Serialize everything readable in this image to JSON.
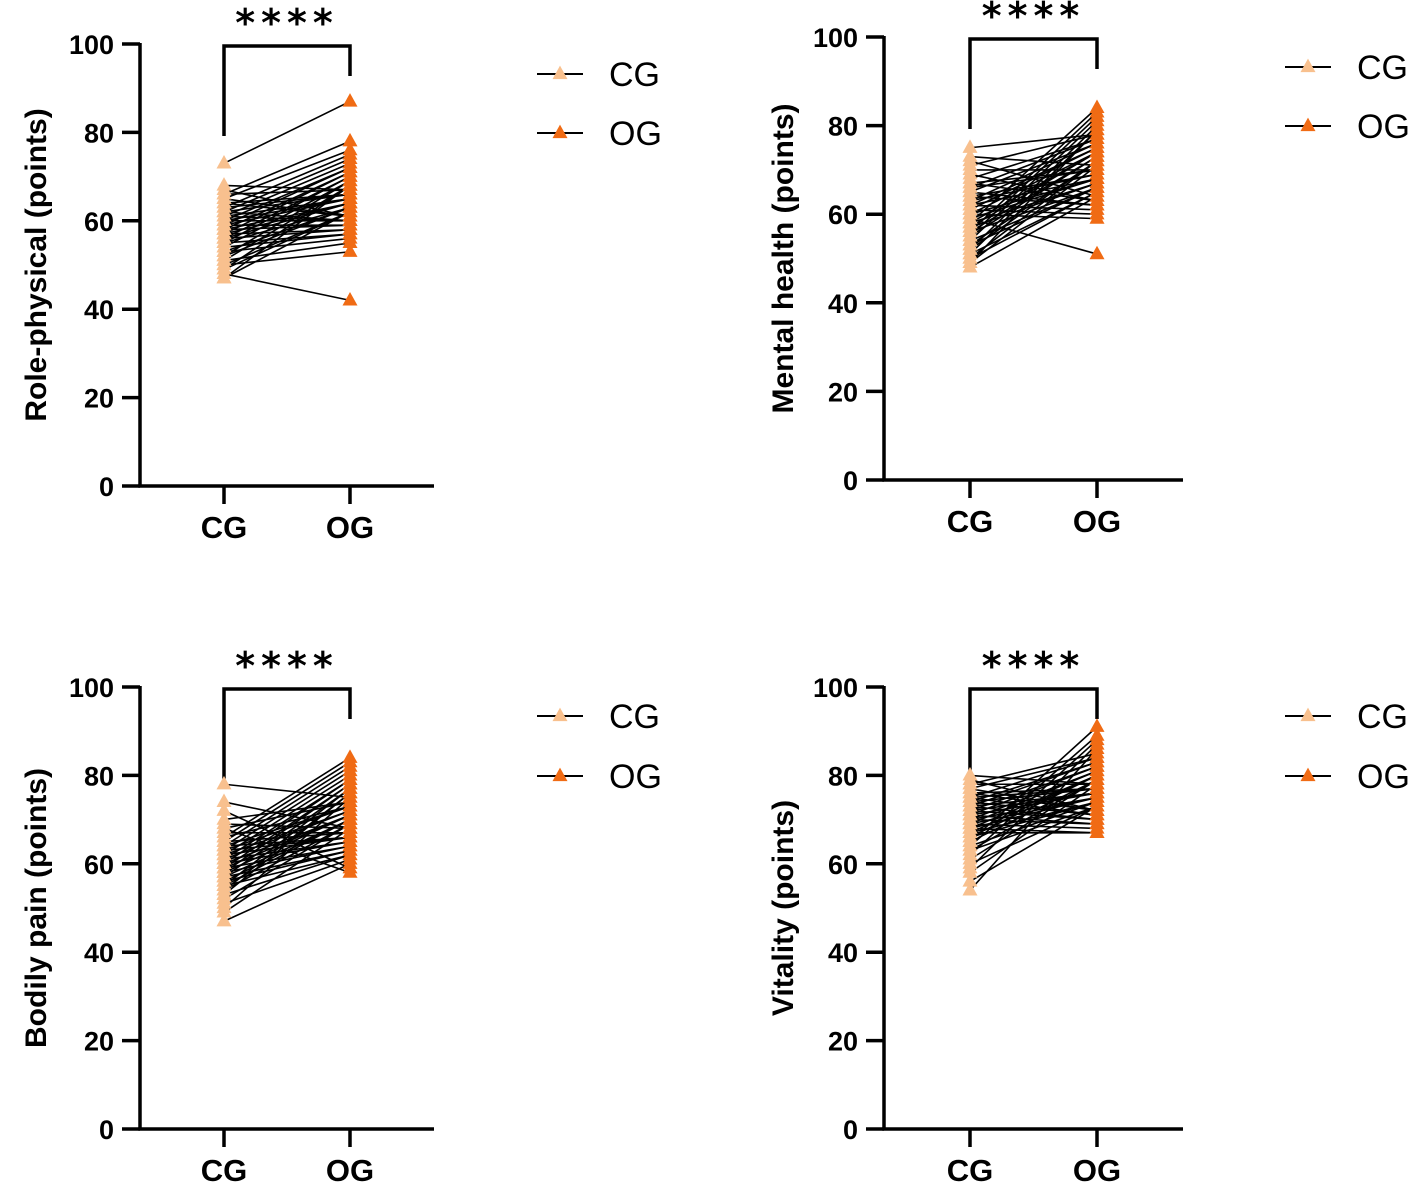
{
  "colors": {
    "cg": "#F8C08E",
    "og": "#F06B14",
    "axis": "#000000",
    "pair_line": "#000000"
  },
  "chart_data": [
    {
      "type": "paired-scatter",
      "ylabel": "Role-physical (points)",
      "categories": [
        "CG",
        "OG"
      ],
      "ylim": [
        0,
        100
      ],
      "yticks": [
        0,
        20,
        40,
        60,
        80,
        100
      ],
      "significance": "****",
      "legend": [
        {
          "label": "CG",
          "color": "#F8C08E"
        },
        {
          "label": "OG",
          "color": "#F06B14"
        }
      ],
      "legend_position": "right",
      "series": [
        {
          "name": "CG",
          "values": [
            73,
            68,
            67,
            66,
            66,
            65,
            65,
            64,
            64,
            63,
            63,
            62,
            62,
            62,
            61,
            61,
            61,
            60,
            60,
            60,
            59,
            59,
            59,
            58,
            58,
            58,
            57,
            57,
            57,
            56,
            56,
            56,
            55,
            55,
            55,
            54,
            54,
            53,
            53,
            52,
            52,
            51,
            51,
            50,
            50,
            49,
            49,
            48,
            47,
            47
          ]
        },
        {
          "name": "OG",
          "values": [
            87,
            78,
            76,
            75,
            74,
            73,
            72,
            72,
            71,
            71,
            70,
            70,
            69,
            69,
            68,
            68,
            68,
            67,
            67,
            66,
            66,
            66,
            65,
            65,
            65,
            64,
            64,
            64,
            63,
            63,
            63,
            62,
            62,
            62,
            61,
            61,
            61,
            60,
            60,
            60,
            59,
            59,
            58,
            58,
            57,
            57,
            56,
            55,
            53,
            42
          ]
        }
      ]
    },
    {
      "type": "paired-scatter",
      "ylabel": "Mental health (points)",
      "categories": [
        "CG",
        "OG"
      ],
      "ylim": [
        0,
        100
      ],
      "yticks": [
        0,
        20,
        40,
        60,
        80,
        100
      ],
      "significance": "****",
      "legend": [
        {
          "label": "CG",
          "color": "#F8C08E"
        },
        {
          "label": "OG",
          "color": "#F06B14"
        }
      ],
      "legend_position": "right",
      "series": [
        {
          "name": "CG",
          "values": [
            75,
            73,
            72,
            71,
            70,
            69,
            68,
            67,
            67,
            66,
            66,
            65,
            65,
            64,
            64,
            63,
            63,
            62,
            62,
            62,
            61,
            61,
            60,
            60,
            60,
            59,
            59,
            58,
            58,
            58,
            57,
            57,
            56,
            56,
            56,
            55,
            55,
            54,
            54,
            53,
            53,
            52,
            52,
            51,
            51,
            50,
            50,
            49,
            49,
            48
          ]
        },
        {
          "name": "OG",
          "values": [
            84,
            83,
            82,
            81,
            80,
            79,
            79,
            78,
            78,
            77,
            77,
            76,
            76,
            75,
            75,
            74,
            74,
            74,
            73,
            73,
            72,
            72,
            72,
            71,
            71,
            70,
            70,
            70,
            69,
            69,
            68,
            68,
            68,
            67,
            67,
            66,
            66,
            66,
            65,
            65,
            64,
            64,
            63,
            63,
            62,
            62,
            61,
            60,
            59,
            51
          ]
        }
      ]
    },
    {
      "type": "paired-scatter",
      "ylabel": "Bodily pain (points)",
      "categories": [
        "CG",
        "OG"
      ],
      "ylim": [
        0,
        100
      ],
      "yticks": [
        0,
        20,
        40,
        60,
        80,
        100
      ],
      "significance": "****",
      "legend": [
        {
          "label": "CG",
          "color": "#F8C08E"
        },
        {
          "label": "OG",
          "color": "#F06B14"
        }
      ],
      "legend_position": "right",
      "series": [
        {
          "name": "CG",
          "values": [
            78,
            74,
            72,
            70,
            69,
            68,
            68,
            67,
            66,
            66,
            65,
            65,
            64,
            64,
            64,
            63,
            63,
            63,
            62,
            62,
            62,
            61,
            61,
            61,
            60,
            60,
            60,
            59,
            59,
            59,
            58,
            58,
            58,
            57,
            57,
            57,
            56,
            56,
            55,
            55,
            55,
            54,
            54,
            53,
            53,
            52,
            51,
            50,
            49,
            47
          ]
        },
        {
          "name": "OG",
          "values": [
            84,
            83,
            82,
            81,
            80,
            79,
            79,
            78,
            78,
            77,
            77,
            76,
            76,
            75,
            75,
            74,
            74,
            73,
            73,
            73,
            72,
            72,
            71,
            71,
            71,
            70,
            70,
            70,
            69,
            69,
            68,
            68,
            68,
            67,
            67,
            66,
            66,
            66,
            65,
            65,
            64,
            64,
            63,
            63,
            62,
            62,
            61,
            60,
            59,
            58
          ]
        }
      ]
    },
    {
      "type": "paired-scatter",
      "ylabel": "Vitality (points)",
      "categories": [
        "CG",
        "OG"
      ],
      "ylim": [
        0,
        100
      ],
      "yticks": [
        0,
        20,
        40,
        60,
        80,
        100
      ],
      "significance": "****",
      "legend": [
        {
          "label": "CG",
          "color": "#F8C08E"
        },
        {
          "label": "OG",
          "color": "#F06B14"
        }
      ],
      "legend_position": "right",
      "series": [
        {
          "name": "CG",
          "values": [
            80,
            79,
            78,
            78,
            77,
            77,
            76,
            76,
            75,
            75,
            75,
            74,
            74,
            74,
            73,
            73,
            73,
            72,
            72,
            72,
            71,
            71,
            71,
            70,
            70,
            70,
            69,
            69,
            69,
            68,
            68,
            68,
            67,
            67,
            67,
            66,
            66,
            65,
            65,
            64,
            64,
            63,
            63,
            62,
            61,
            60,
            59,
            58,
            56,
            54
          ]
        },
        {
          "name": "OG",
          "values": [
            91,
            89,
            88,
            87,
            86,
            85,
            84,
            84,
            83,
            83,
            82,
            82,
            81,
            81,
            80,
            80,
            80,
            79,
            79,
            79,
            78,
            78,
            78,
            77,
            77,
            77,
            76,
            76,
            76,
            75,
            75,
            75,
            74,
            74,
            74,
            73,
            73,
            73,
            72,
            72,
            72,
            71,
            71,
            70,
            70,
            69,
            69,
            68,
            67,
            67
          ]
        }
      ]
    }
  ]
}
